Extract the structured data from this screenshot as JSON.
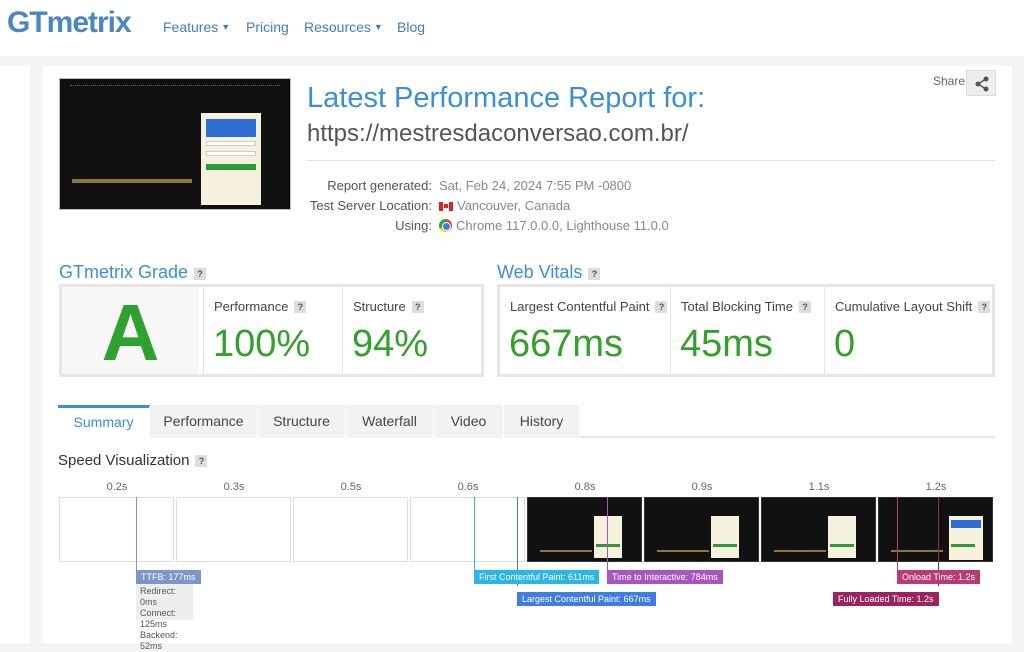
{
  "nav": {
    "logo": "GTmetrix",
    "items": [
      {
        "label": "Features",
        "dropdown": true
      },
      {
        "label": "Pricing",
        "dropdown": false
      },
      {
        "label": "Resources",
        "dropdown": true
      },
      {
        "label": "Blog",
        "dropdown": false
      }
    ]
  },
  "report": {
    "title": "Latest Performance Report for:",
    "url": "https://mestresdaconversao.com.br/",
    "share_label": "Share",
    "meta": [
      {
        "label": "Report generated:",
        "value": "Sat, Feb 24, 2024 7:55 PM -0800"
      },
      {
        "label": "Test Server Location:",
        "value": "Vancouver, Canada"
      },
      {
        "label": "Using:",
        "value": "Chrome 117.0.0.0, Lighthouse 11.0.0"
      }
    ]
  },
  "grade": {
    "title": "GTmetrix Grade",
    "letter": "A",
    "performance_label": "Performance",
    "performance_value": "100%",
    "structure_label": "Structure",
    "structure_value": "94%"
  },
  "vitals": {
    "title": "Web Vitals",
    "lcp_label": "Largest Contentful Paint",
    "lcp_value": "667ms",
    "tbt_label": "Total Blocking Time",
    "tbt_value": "45ms",
    "cls_label": "Cumulative Layout Shift",
    "cls_value": "0"
  },
  "tabs": [
    "Summary",
    "Performance",
    "Structure",
    "Waterfall",
    "Video",
    "History"
  ],
  "speed": {
    "title": "Speed Visualization",
    "times": [
      "0.2s",
      "0.3s",
      "0.5s",
      "0.6s",
      "0.8s",
      "0.9s",
      "1.1s",
      "1.2s"
    ],
    "markers": {
      "ttfb": "TTFB: 177ms",
      "redirect": "Redirect: 0ms",
      "connect": "Connect: 125ms",
      "backend": "Backend: 52ms",
      "fcp": "First Contentful Paint: 611ms",
      "lcp": "Largest Contentful Paint: 667ms",
      "tti": "Time to Interactive: 784ms",
      "onload": "Onload Time: 1.2s",
      "fully": "Fully Loaded Time: 1.2s"
    }
  },
  "colors": {
    "accent": "#3a8fd6",
    "grade_green": "#2ea12e",
    "ttfb": "#7d96c8",
    "fcp": "#2bb6e8",
    "lcp": "#3f7ee0",
    "tti": "#a855c2",
    "onload": "#b83b75",
    "fully": "#9b2360"
  }
}
